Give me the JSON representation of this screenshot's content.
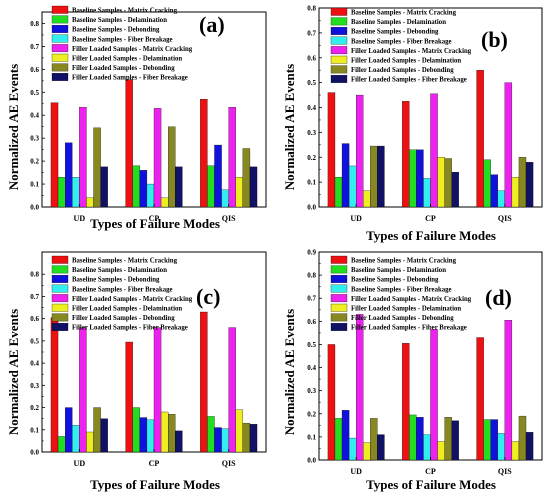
{
  "figure": {
    "panels": [
      {
        "tag": "(a)",
        "ylabel": "Normalized AE Events",
        "xlabel": "Types of Failure Modes"
      },
      {
        "tag": "(b)",
        "ylabel": "Normalized AE Events",
        "xlabel": "Types of Failure Modes"
      },
      {
        "tag": "(c)",
        "ylabel": "Normalized AE Events",
        "xlabel": "Types of Failure Modes"
      },
      {
        "tag": "(d)",
        "ylabel": "Normalized AE Events",
        "xlabel": "Types of Failure Modes"
      }
    ]
  },
  "series_colors": [
    "#ee1111",
    "#22dd22",
    "#1111dd",
    "#33eeee",
    "#ee22ee",
    "#eeee22",
    "#888822",
    "#111166"
  ],
  "chart_data": [
    {
      "type": "bar",
      "title": "(a)",
      "xlabel": "Types of Failure Modes",
      "ylabel": "Normalized AE Events",
      "categories": [
        "UD",
        "CP",
        "QIS"
      ],
      "ylim": [
        0,
        0.85
      ],
      "yticks": [
        0.0,
        0.1,
        0.2,
        0.3,
        0.4,
        0.5,
        0.6,
        0.7,
        0.8
      ],
      "legend_position": "top",
      "series": [
        {
          "name": "Baseline Samples - Matrix Cracking",
          "values": [
            0.455,
            0.555,
            0.47
          ]
        },
        {
          "name": "Baseline Samples - Delamination",
          "values": [
            0.13,
            0.18,
            0.18
          ]
        },
        {
          "name": "Baseline Samples - Debonding",
          "values": [
            0.28,
            0.16,
            0.27
          ]
        },
        {
          "name": "Baseline Samples - Fiber Breakage",
          "values": [
            0.13,
            0.1,
            0.075
          ]
        },
        {
          "name": "Filler Loaded Samples - Matrix Cracking",
          "values": [
            0.435,
            0.43,
            0.435
          ]
        },
        {
          "name": "Filler Loaded Samples - Delamination",
          "values": [
            0.04,
            0.04,
            0.13
          ]
        },
        {
          "name": "Filler Loaded Samples - Debonding",
          "values": [
            0.345,
            0.35,
            0.255
          ]
        },
        {
          "name": "Filler Loaded Samples - Fiber Breakage",
          "values": [
            0.175,
            0.175,
            0.175
          ]
        }
      ]
    },
    {
      "type": "bar",
      "title": "(b)",
      "xlabel": "Types of Failure Modes",
      "ylabel": "Normalized AE Events",
      "categories": [
        "UD",
        "CP",
        "QIS"
      ],
      "ylim": [
        0,
        0.8
      ],
      "yticks": [
        0.0,
        0.1,
        0.2,
        0.3,
        0.4,
        0.5,
        0.6,
        0.7,
        0.8
      ],
      "legend_position": "top",
      "series": [
        {
          "name": "Baseline Samples - Matrix Cracking",
          "values": [
            0.46,
            0.425,
            0.55
          ]
        },
        {
          "name": "Baseline Samples - Delamination",
          "values": [
            0.12,
            0.23,
            0.19
          ]
        },
        {
          "name": "Baseline Samples - Debonding",
          "values": [
            0.255,
            0.23,
            0.13
          ]
        },
        {
          "name": "Baseline Samples - Fiber Breakage",
          "values": [
            0.165,
            0.115,
            0.065
          ]
        },
        {
          "name": "Filler Loaded Samples - Matrix Cracking",
          "values": [
            0.45,
            0.455,
            0.5
          ]
        },
        {
          "name": "Filler Loaded Samples - Delamination",
          "values": [
            0.065,
            0.2,
            0.12
          ]
        },
        {
          "name": "Filler Loaded Samples - Debonding",
          "values": [
            0.245,
            0.195,
            0.2
          ]
        },
        {
          "name": "Filler Loaded Samples - Fiber Breakage",
          "values": [
            0.245,
            0.14,
            0.18
          ]
        }
      ]
    },
    {
      "type": "bar",
      "title": "(c)",
      "xlabel": "Types of Failure Modes",
      "ylabel": "Normalized AE Events",
      "categories": [
        "UD",
        "CP",
        "QIS"
      ],
      "ylim": [
        0,
        0.9
      ],
      "yticks": [
        0.0,
        0.1,
        0.2,
        0.3,
        0.4,
        0.5,
        0.6,
        0.7,
        0.8
      ],
      "legend_position": "top",
      "series": [
        {
          "name": "Baseline Samples - Matrix Cracking",
          "values": [
            0.605,
            0.495,
            0.63
          ]
        },
        {
          "name": "Baseline Samples - Delamination",
          "values": [
            0.07,
            0.2,
            0.16
          ]
        },
        {
          "name": "Baseline Samples - Debonding",
          "values": [
            0.2,
            0.155,
            0.11
          ]
        },
        {
          "name": "Baseline Samples - Fiber Breakage",
          "values": [
            0.12,
            0.145,
            0.105
          ]
        },
        {
          "name": "Filler Loaded Samples - Matrix Cracking",
          "values": [
            0.56,
            0.56,
            0.56
          ]
        },
        {
          "name": "Filler Loaded Samples - Delamination",
          "values": [
            0.09,
            0.18,
            0.19
          ]
        },
        {
          "name": "Filler Loaded Samples - Debonding",
          "values": [
            0.2,
            0.17,
            0.13
          ]
        },
        {
          "name": "Filler Loaded Samples - Fiber Breakage",
          "values": [
            0.15,
            0.095,
            0.125
          ]
        }
      ]
    },
    {
      "type": "bar",
      "title": "(d)",
      "xlabel": "Types of Failure Modes",
      "ylabel": "Normalized AE Events",
      "categories": [
        "UD",
        "CP",
        "QIS"
      ],
      "ylim": [
        0,
        0.9
      ],
      "yticks": [
        0.0,
        0.1,
        0.2,
        0.3,
        0.4,
        0.5,
        0.6,
        0.7,
        0.8,
        0.9
      ],
      "legend_position": "top",
      "series": [
        {
          "name": "Baseline Samples - Matrix Cracking",
          "values": [
            0.5,
            0.505,
            0.53
          ]
        },
        {
          "name": "Baseline Samples - Delamination",
          "values": [
            0.18,
            0.195,
            0.175
          ]
        },
        {
          "name": "Baseline Samples - Debonding",
          "values": [
            0.215,
            0.185,
            0.175
          ]
        },
        {
          "name": "Baseline Samples - Fiber Breakage",
          "values": [
            0.095,
            0.11,
            0.115
          ]
        },
        {
          "name": "Filler Loaded Samples - Matrix Cracking",
          "values": [
            0.63,
            0.565,
            0.605
          ]
        },
        {
          "name": "Filler Loaded Samples - Delamination",
          "values": [
            0.075,
            0.08,
            0.08
          ]
        },
        {
          "name": "Filler Loaded Samples - Debonding",
          "values": [
            0.18,
            0.185,
            0.19
          ]
        },
        {
          "name": "Filler Loaded Samples - Fiber Breakage",
          "values": [
            0.11,
            0.17,
            0.12
          ]
        }
      ]
    }
  ]
}
